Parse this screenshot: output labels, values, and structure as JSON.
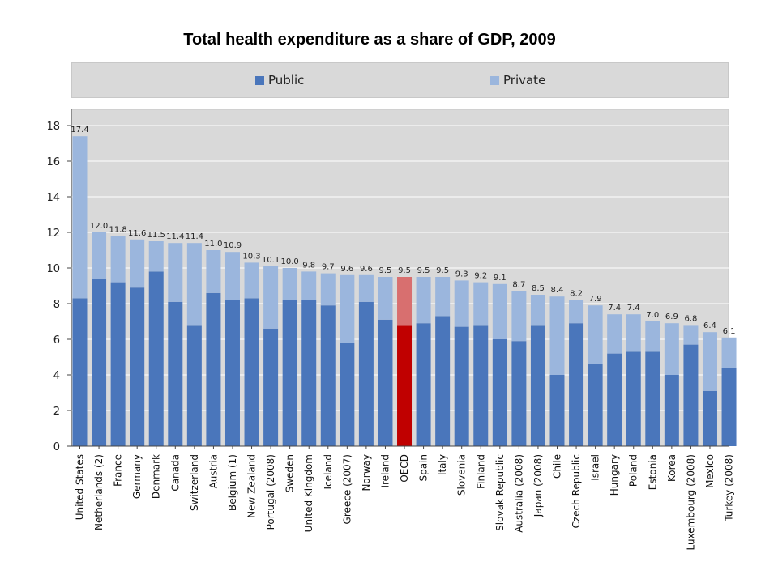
{
  "colors": {
    "public": "#4a76bb",
    "private": "#9bb6dd",
    "oecd_public": "#c00000",
    "oecd_private": "#d86f6f",
    "plot_bg": "#d9d9d9"
  },
  "chart_data": {
    "type": "bar",
    "stacked": true,
    "title": "Total health expenditure as a share of GDP, 2009",
    "legend": [
      "Public",
      "Private"
    ],
    "legend_position": "top",
    "ylim": [
      0,
      18
    ],
    "yticks": [
      0,
      2,
      4,
      6,
      8,
      10,
      12,
      14,
      16,
      18
    ],
    "categories": [
      "United States",
      "Netherlands (2)",
      "France",
      "Germany",
      "Denmark",
      "Canada",
      "Switzerland",
      "Austria",
      "Belgium (1)",
      "New Zealand",
      "Portugal (2008)",
      "Sweden",
      "United Kingdom",
      "Iceland",
      "Greece (2007)",
      "Norway",
      "Ireland",
      "OECD",
      "Spain",
      "Italy",
      "Slovenia",
      "Finland",
      "Slovak Republic",
      "Australia (2008)",
      "Japan (2008)",
      "Chile",
      "Czech Republic",
      "Israel",
      "Hungary",
      "Poland",
      "Estonia",
      "Korea",
      "Luxembourg (2008)",
      "Mexico",
      "Turkey (2008)"
    ],
    "series": [
      {
        "name": "Public",
        "values": [
          8.3,
          9.4,
          9.2,
          8.9,
          9.8,
          8.1,
          6.8,
          8.6,
          8.2,
          8.3,
          6.6,
          8.2,
          8.2,
          7.9,
          5.8,
          8.1,
          7.1,
          6.8,
          6.9,
          7.3,
          6.7,
          6.8,
          6.0,
          5.9,
          6.8,
          4.0,
          6.9,
          4.6,
          5.2,
          5.3,
          5.3,
          4.0,
          5.7,
          3.1,
          4.4
        ]
      },
      {
        "name": "Private",
        "values": [
          9.1,
          2.6,
          2.6,
          2.7,
          1.7,
          3.3,
          4.6,
          2.4,
          2.7,
          2.0,
          3.5,
          1.8,
          1.6,
          1.8,
          3.8,
          1.5,
          2.4,
          2.7,
          2.6,
          2.2,
          2.6,
          2.4,
          3.1,
          2.8,
          1.7,
          4.4,
          1.3,
          3.3,
          2.2,
          2.1,
          1.7,
          2.9,
          1.1,
          3.3,
          1.7
        ]
      }
    ],
    "totals": [
      "17.4",
      "12.0",
      "11.8",
      "11.6",
      "11.5",
      "11.4",
      "11.4",
      "11.0",
      "10.9",
      "10.3",
      "10.1",
      "10.0",
      "9.8",
      "9.7",
      "9.6",
      "9.6",
      "9.5",
      "9.5",
      "9.5",
      "9.5",
      "9.3",
      "9.2",
      "9.1",
      "8.7",
      "8.5",
      "8.4",
      "8.2",
      "7.9",
      "7.4",
      "7.4",
      "7.0",
      "6.9",
      "6.8",
      "6.4",
      "6.1"
    ],
    "highlight": "OECD"
  }
}
